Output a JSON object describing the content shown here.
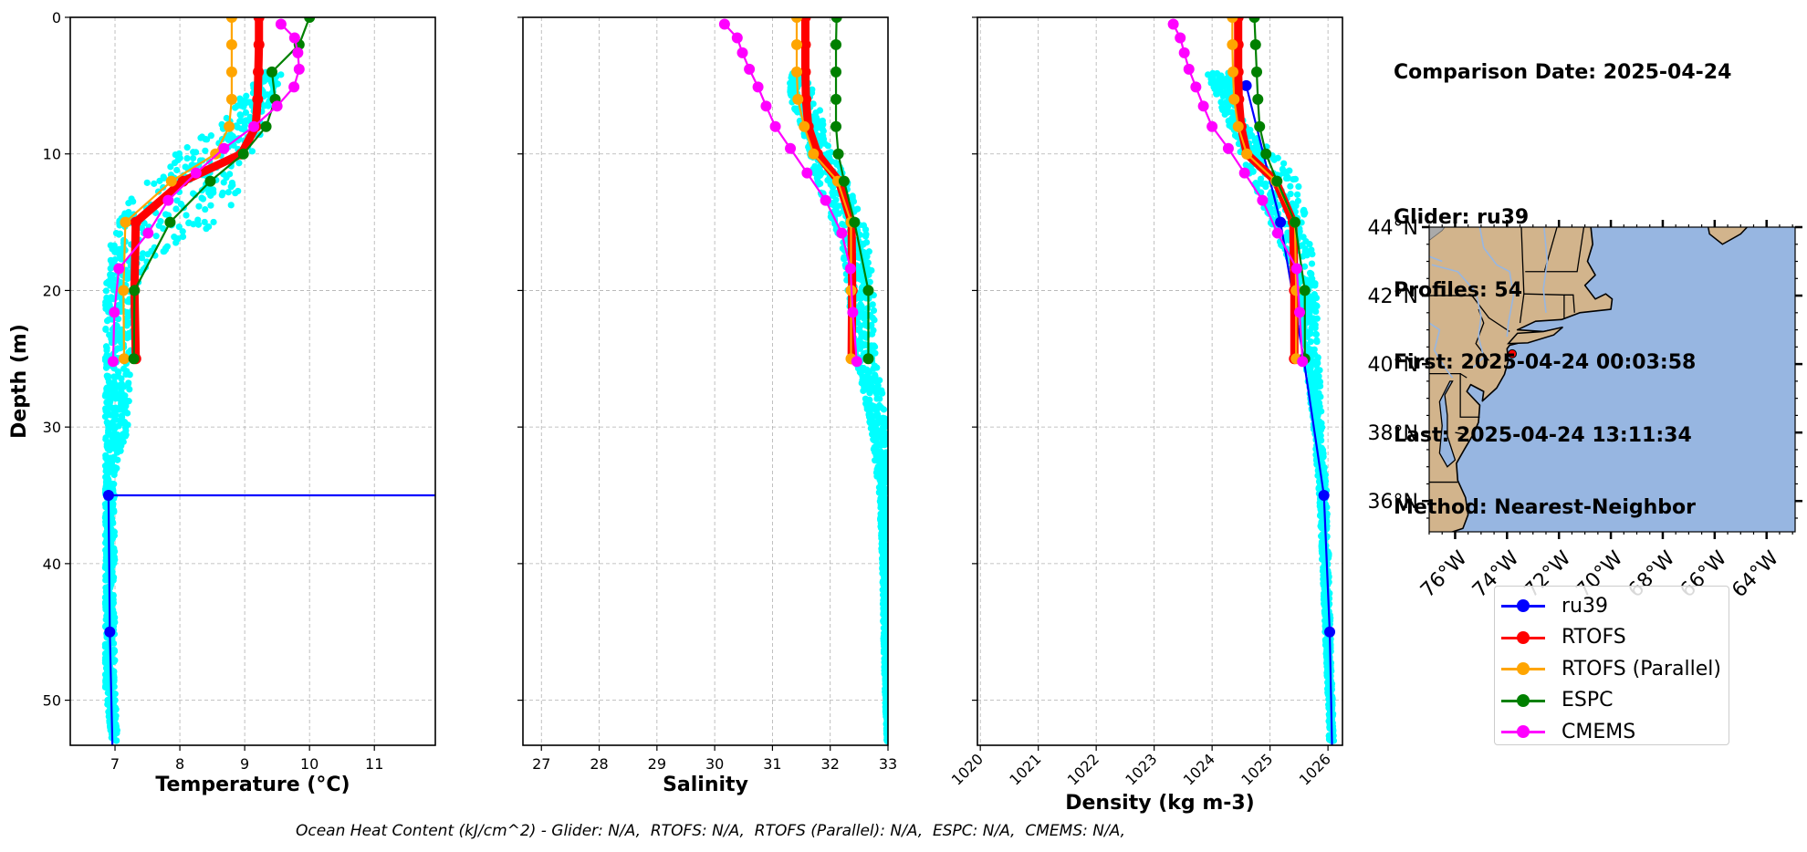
{
  "info": {
    "comparison_date": "Comparison Date: 2025-04-24",
    "glider": "Glider: ru39",
    "profiles": "Profiles: 54",
    "first": "First: 2025-04-24 00:03:58",
    "last": "Last: 2025-04-24 13:11:34",
    "method": "Method: Nearest-Neighbor"
  },
  "legend": [
    {
      "label": "ru39",
      "color": "#0000ff"
    },
    {
      "label": "RTOFS",
      "color": "#ff0000"
    },
    {
      "label": "RTOFS (Parallel)",
      "color": "#ffa500"
    },
    {
      "label": "ESPC",
      "color": "#008000"
    },
    {
      "label": "CMEMS",
      "color": "#ff00ff"
    }
  ],
  "footer": "Ocean Heat Content (kJ/cm^2) - Glider: N/A,  RTOFS: N/A,  RTOFS (Parallel): N/A,  ESPC: N/A,  CMEMS: N/A,",
  "chart_data": [
    {
      "type": "line",
      "id": "temperature",
      "title": "",
      "xlabel": "Temperature (°C)",
      "ylabel": "Depth (m)",
      "xlim": [
        6.31,
        11.94
      ],
      "ylim": [
        53.3,
        0
      ],
      "xticks": [
        7,
        8,
        9,
        10,
        11
      ],
      "yticks": [
        0,
        10,
        20,
        30,
        40,
        50
      ],
      "grid": true,
      "glider_scatter": {
        "color": "#00ffff",
        "description": "ru39 raw profiles (54 profiles)",
        "envelope": [
          [
            4,
            9.3,
            9.6
          ],
          [
            6,
            8.9,
            9.4
          ],
          [
            8,
            8.6,
            9.3
          ],
          [
            10,
            7.9,
            9.1
          ],
          [
            12,
            7.5,
            9.0
          ],
          [
            14,
            7.1,
            8.8
          ],
          [
            16,
            6.95,
            8.3
          ],
          [
            18,
            6.9,
            7.6
          ],
          [
            20,
            6.85,
            7.3
          ],
          [
            25,
            6.85,
            7.25
          ],
          [
            30,
            6.85,
            7.2
          ],
          [
            34,
            6.85,
            7.0
          ],
          [
            40,
            6.85,
            7.0
          ],
          [
            49,
            6.85,
            7.0
          ],
          [
            53,
            6.95,
            7.05
          ]
        ]
      },
      "series": [
        {
          "name": "ru39",
          "color": "#0000ff",
          "depth": [
            35,
            35,
            45,
            53.3
          ],
          "values": [
            11.94,
            6.9,
            6.92,
            6.96
          ],
          "note": "horizontal segment at 35 m extends to right axis"
        },
        {
          "name": "RTOFS",
          "color": "#ff0000",
          "depth": [
            0,
            2,
            4,
            6,
            8,
            10,
            12,
            15,
            20,
            25
          ],
          "values": [
            9.22,
            9.22,
            9.21,
            9.2,
            9.17,
            8.95,
            8.05,
            7.32,
            7.3,
            7.32
          ]
        },
        {
          "name": "RTOFS (Parallel)",
          "color": "#ffa500",
          "depth": [
            0,
            2,
            4,
            6,
            8,
            10,
            12,
            15,
            20,
            25
          ],
          "values": [
            8.8,
            8.8,
            8.8,
            8.8,
            8.76,
            8.55,
            7.87,
            7.16,
            7.13,
            7.14
          ]
        },
        {
          "name": "ESPC",
          "color": "#008000",
          "depth": [
            0,
            2,
            4,
            6,
            8,
            10,
            12,
            15,
            20,
            25
          ],
          "values": [
            10.0,
            9.84,
            9.42,
            9.47,
            9.33,
            8.98,
            8.47,
            7.85,
            7.3,
            7.29
          ]
        },
        {
          "name": "CMEMS",
          "color": "#ff00ff",
          "depth": [
            0.5,
            1.5,
            2.6,
            3.8,
            5.1,
            6.5,
            8.0,
            9.6,
            11.4,
            13.4,
            15.8,
            18.4,
            21.6,
            25.2
          ],
          "values": [
            9.56,
            9.77,
            9.82,
            9.84,
            9.76,
            9.5,
            9.14,
            8.68,
            8.25,
            7.82,
            7.51,
            7.06,
            6.99,
            6.97
          ]
        }
      ]
    },
    {
      "type": "line",
      "id": "salinity",
      "title": "",
      "xlabel": "Salinity",
      "ylabel": "",
      "xlim": [
        26.68,
        33.0
      ],
      "ylim": [
        53.3,
        0
      ],
      "xticks": [
        27,
        28,
        29,
        30,
        31,
        32,
        33
      ],
      "yticks": [
        0,
        10,
        20,
        30,
        40,
        50
      ],
      "grid": true,
      "glider_scatter": {
        "color": "#00ffff",
        "description": "ru39 raw profiles",
        "envelope": [
          [
            4,
            31.3,
            31.5
          ],
          [
            6,
            31.3,
            31.8
          ],
          [
            8,
            31.5,
            31.9
          ],
          [
            10,
            31.65,
            32.05
          ],
          [
            12,
            31.75,
            32.3
          ],
          [
            14,
            31.95,
            32.5
          ],
          [
            16,
            32.15,
            32.65
          ],
          [
            18,
            32.25,
            32.72
          ],
          [
            20,
            32.3,
            32.75
          ],
          [
            25,
            32.45,
            32.8
          ],
          [
            30,
            32.7,
            33.0
          ],
          [
            35,
            32.85,
            33.0
          ],
          [
            40,
            32.9,
            33.0
          ],
          [
            45,
            32.92,
            33.0
          ],
          [
            50,
            32.95,
            33.0
          ],
          [
            53,
            32.98,
            33.0
          ]
        ]
      },
      "series": [
        {
          "name": "RTOFS",
          "color": "#ff0000",
          "depth": [
            0,
            2,
            4,
            6,
            8,
            10,
            12,
            15,
            20,
            25
          ],
          "values": [
            31.57,
            31.57,
            31.57,
            31.58,
            31.62,
            31.78,
            32.15,
            32.37,
            32.38,
            32.37
          ]
        },
        {
          "name": "RTOFS (Parallel)",
          "color": "#ffa500",
          "depth": [
            0,
            2,
            4,
            6,
            8,
            10,
            12,
            15,
            20,
            25
          ],
          "values": [
            31.42,
            31.42,
            31.42,
            31.44,
            31.55,
            31.71,
            32.13,
            32.36,
            32.36,
            32.36
          ]
        },
        {
          "name": "ESPC",
          "color": "#008000",
          "depth": [
            0,
            2,
            4,
            6,
            8,
            10,
            12,
            15,
            20,
            25
          ],
          "values": [
            32.11,
            32.1,
            32.1,
            32.1,
            32.1,
            32.14,
            32.24,
            32.42,
            32.66,
            32.66
          ]
        },
        {
          "name": "CMEMS",
          "color": "#ff00ff",
          "depth": [
            0.5,
            1.5,
            2.6,
            3.8,
            5.1,
            6.5,
            8.0,
            9.6,
            11.4,
            13.4,
            15.8,
            18.4,
            21.6,
            25.2
          ],
          "values": [
            30.17,
            30.39,
            30.48,
            30.6,
            30.75,
            30.89,
            31.05,
            31.31,
            31.6,
            31.92,
            32.2,
            32.35,
            32.39,
            32.46
          ]
        }
      ]
    },
    {
      "type": "line",
      "id": "density",
      "title": "",
      "xlabel": "Density (kg m-3)",
      "ylabel": "",
      "xlim": [
        1019.95,
        1026.25
      ],
      "ylim": [
        53.3,
        0
      ],
      "xticks": [
        1020,
        1021,
        1022,
        1023,
        1024,
        1025,
        1026
      ],
      "yticks": [
        0,
        10,
        20,
        30,
        40,
        50
      ],
      "grid": true,
      "glider_scatter": {
        "color": "#00ffff",
        "description": "ru39 raw profiles",
        "envelope": [
          [
            4,
            1023.9,
            1024.3
          ],
          [
            6,
            1024.1,
            1024.4
          ],
          [
            8,
            1024.3,
            1024.6
          ],
          [
            10,
            1024.5,
            1025.1
          ],
          [
            12,
            1024.7,
            1025.5
          ],
          [
            14,
            1024.9,
            1025.6
          ],
          [
            16,
            1025.1,
            1025.7
          ],
          [
            18,
            1025.35,
            1025.75
          ],
          [
            20,
            1025.45,
            1025.8
          ],
          [
            25,
            1025.6,
            1025.85
          ],
          [
            30,
            1025.75,
            1025.9
          ],
          [
            35,
            1025.85,
            1025.98
          ],
          [
            40,
            1025.9,
            1026.02
          ],
          [
            45,
            1025.95,
            1026.05
          ],
          [
            50,
            1026.0,
            1026.08
          ],
          [
            53,
            1026.02,
            1026.1
          ]
        ]
      },
      "series": [
        {
          "name": "ru39",
          "color": "#0000ff",
          "depth": [
            5,
            15,
            25,
            35,
            45,
            53.3
          ],
          "values": [
            1024.59,
            1025.18,
            1025.58,
            1025.93,
            1026.03,
            1026.07
          ]
        },
        {
          "name": "RTOFS",
          "color": "#ff0000",
          "depth": [
            0,
            2,
            4,
            6,
            8,
            10,
            12,
            15,
            20,
            25
          ],
          "values": [
            1024.45,
            1024.45,
            1024.45,
            1024.46,
            1024.5,
            1024.6,
            1025.1,
            1025.4,
            1025.42,
            1025.42
          ]
        },
        {
          "name": "RTOFS (Parallel)",
          "color": "#ffa500",
          "depth": [
            0,
            2,
            4,
            6,
            8,
            10,
            12,
            15,
            20,
            25
          ],
          "values": [
            1024.35,
            1024.35,
            1024.36,
            1024.38,
            1024.45,
            1024.6,
            1025.1,
            1025.43,
            1025.45,
            1025.45
          ]
        },
        {
          "name": "ESPC",
          "color": "#008000",
          "depth": [
            0,
            2,
            4,
            6,
            8,
            10,
            12,
            15,
            20,
            25
          ],
          "values": [
            1024.73,
            1024.75,
            1024.77,
            1024.79,
            1024.82,
            1024.93,
            1025.12,
            1025.43,
            1025.6,
            1025.6
          ]
        },
        {
          "name": "CMEMS",
          "color": "#ff00ff",
          "depth": [
            0.5,
            1.5,
            2.6,
            3.8,
            5.1,
            6.5,
            8.0,
            9.6,
            11.4,
            13.4,
            15.8,
            18.4,
            21.6,
            25.2
          ],
          "values": [
            1023.33,
            1023.45,
            1023.52,
            1023.6,
            1023.72,
            1023.85,
            1024.0,
            1024.28,
            1024.56,
            1024.87,
            1025.13,
            1025.46,
            1025.51,
            1025.56
          ]
        }
      ]
    },
    {
      "type": "map",
      "id": "location-map",
      "xlabel": "",
      "ylabel": "",
      "lon_range": [
        -77.0,
        -62.9
      ],
      "lat_range": [
        35.1,
        44.0
      ],
      "xticks": [
        "76°W",
        "74°W",
        "72°W",
        "70°W",
        "68°W",
        "66°W",
        "64°W"
      ],
      "xtick_values": [
        -76,
        -74,
        -72,
        -70,
        -68,
        -66,
        -64
      ],
      "yticks": [
        "36°N",
        "38°N",
        "40°N",
        "42°N",
        "44°N"
      ],
      "ytick_values": [
        36,
        38,
        40,
        42,
        44
      ],
      "land_color": "#d2b48c",
      "ocean_color": "#97b6e1",
      "marker": {
        "label": "ru39 location",
        "lon": -73.8,
        "lat": 40.3,
        "color": "#ff0000"
      }
    }
  ]
}
